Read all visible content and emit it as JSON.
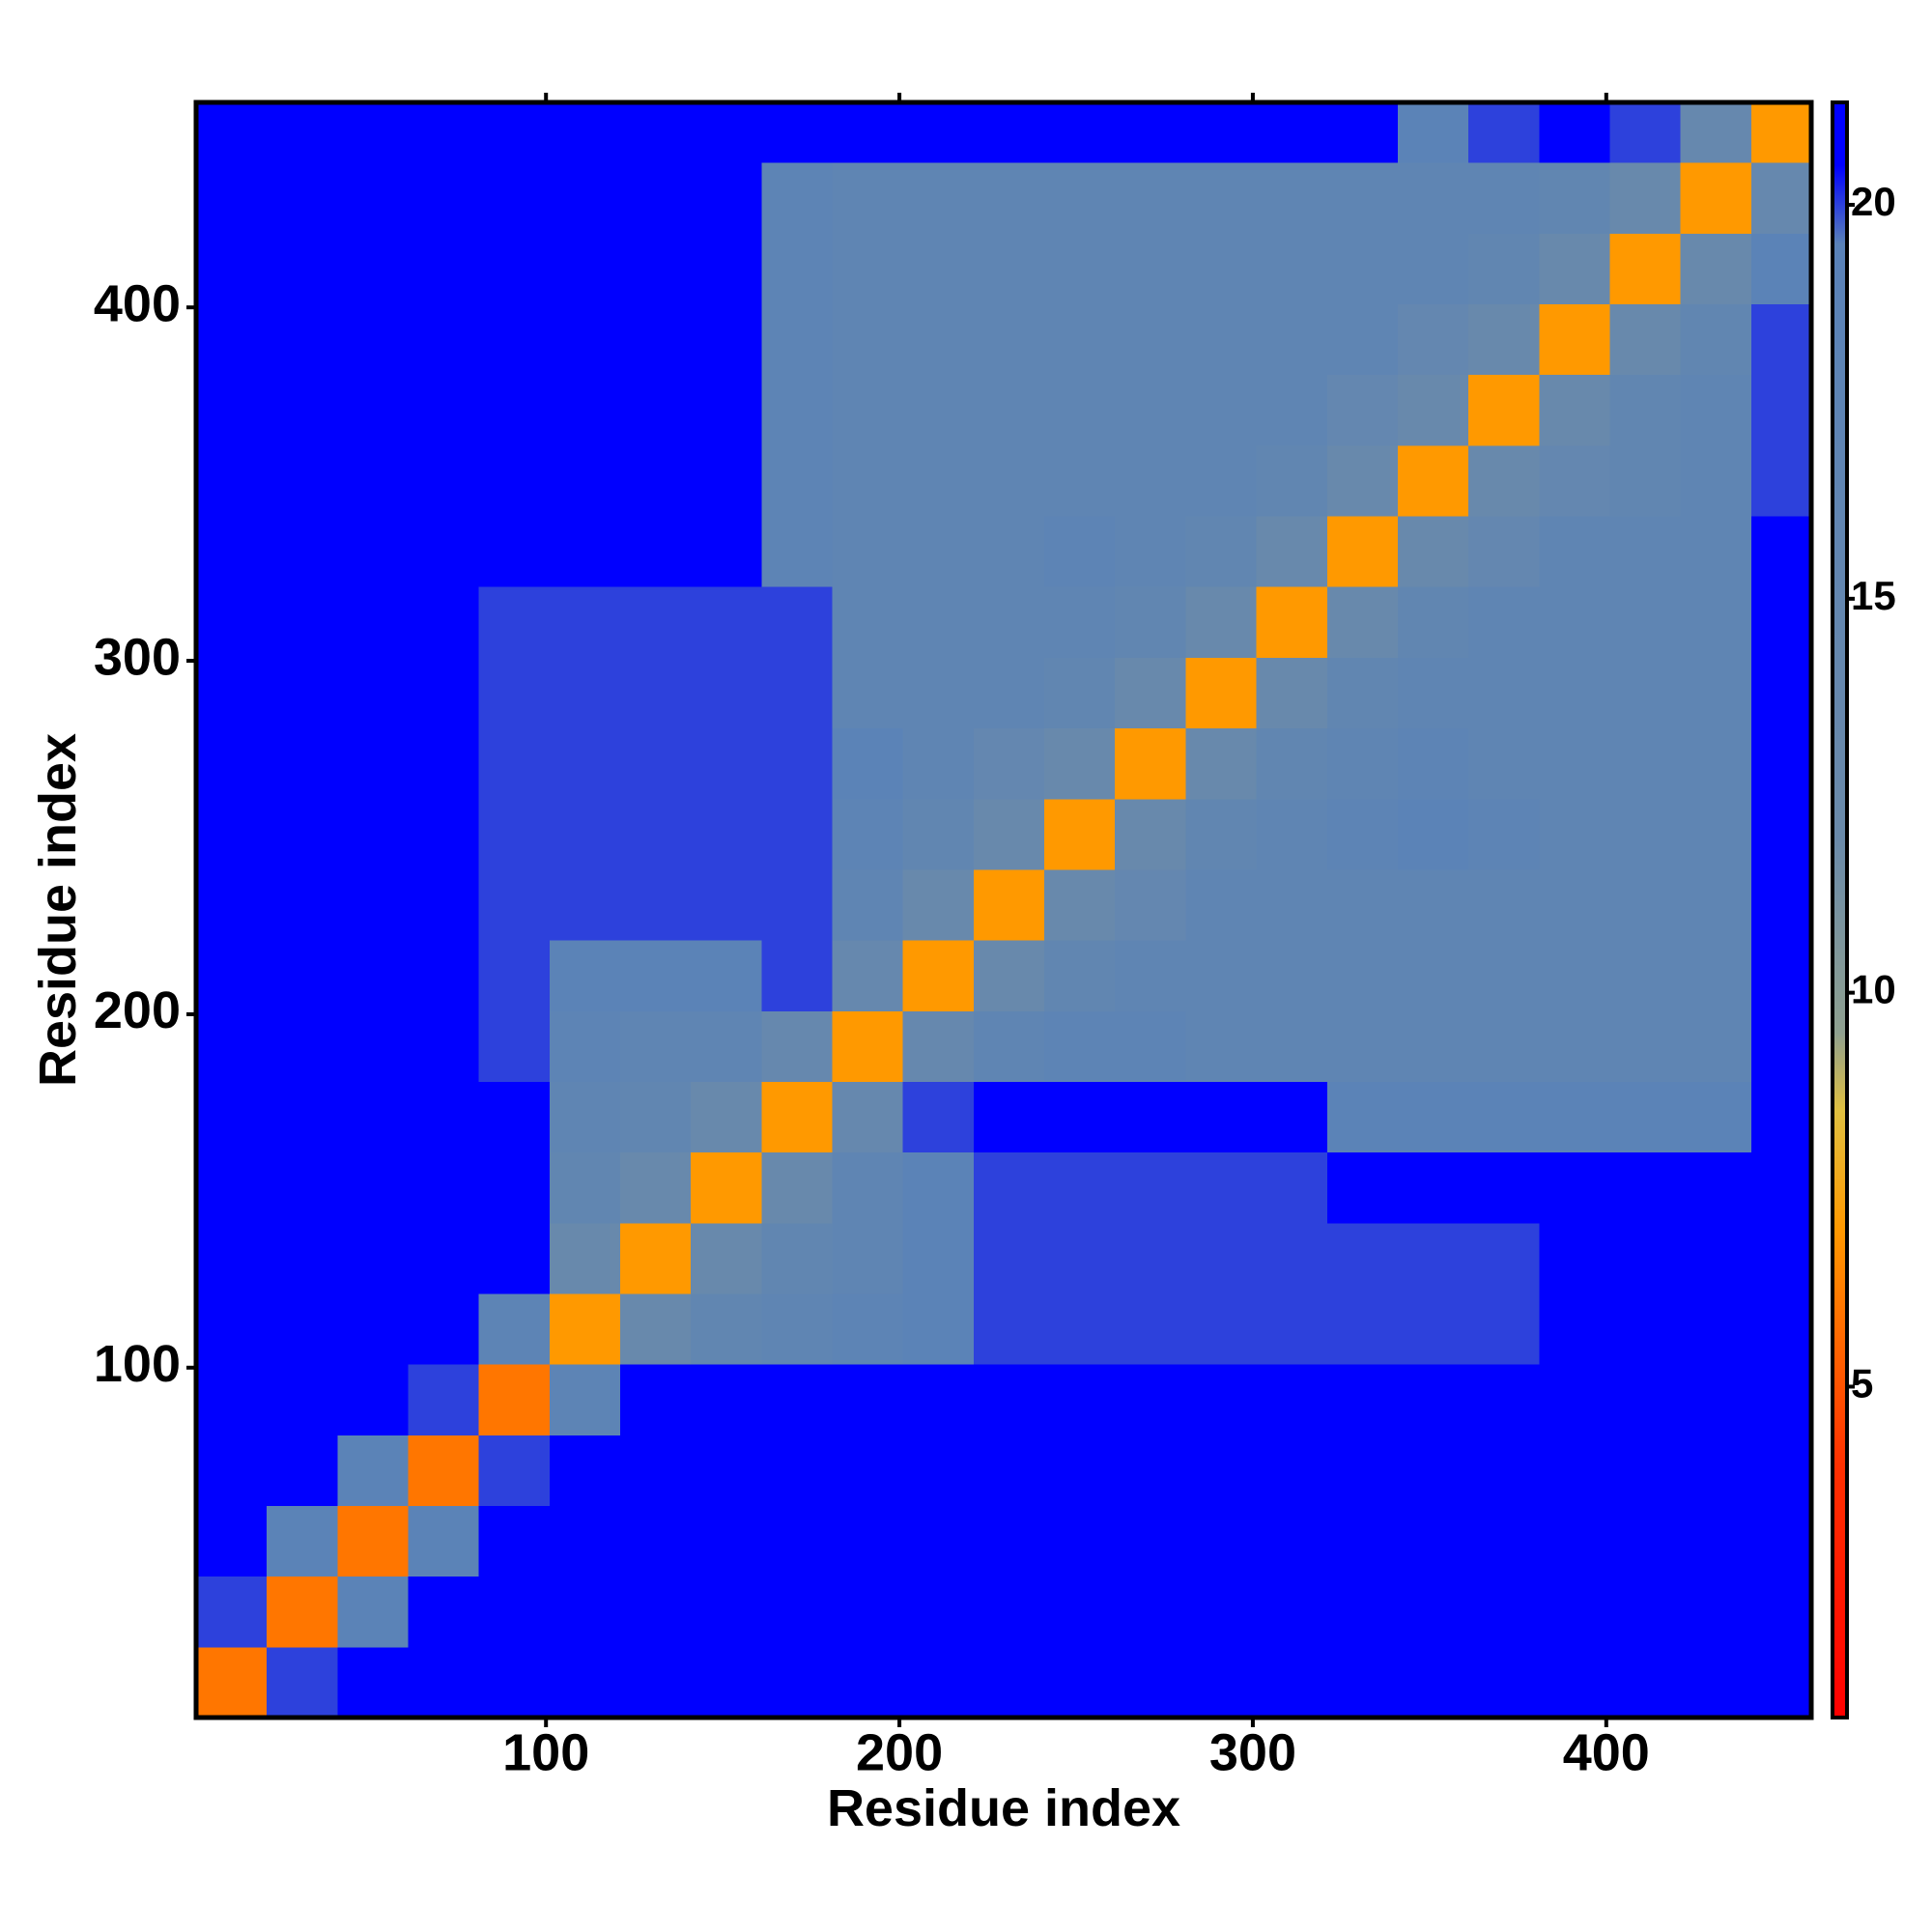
{
  "chart_data": {
    "type": "heatmap",
    "xlabel": "Residue index",
    "ylabel": "Residue index",
    "xlim": [
      1,
      458
    ],
    "ylim": [
      1,
      458
    ],
    "xticks": [
      100,
      200,
      300,
      400
    ],
    "yticks": [
      100,
      200,
      300,
      400
    ],
    "bins": [
      1,
      21,
      41,
      61,
      81,
      101,
      121,
      141,
      161,
      181,
      201,
      221,
      241,
      261,
      281,
      301,
      321,
      341,
      361,
      381,
      401,
      421,
      441,
      458
    ],
    "values": [
      [
        6,
        20,
        21,
        21,
        21,
        21,
        21,
        21,
        21,
        21,
        21,
        21,
        21,
        21,
        21,
        21,
        21,
        21,
        21,
        21,
        21,
        21,
        21
      ],
      [
        20,
        6,
        19,
        21,
        21,
        21,
        21,
        21,
        21,
        21,
        21,
        21,
        21,
        21,
        21,
        21,
        21,
        21,
        21,
        21,
        21,
        21,
        21
      ],
      [
        21,
        19,
        6,
        19,
        21,
        21,
        21,
        21,
        21,
        21,
        21,
        21,
        21,
        21,
        21,
        21,
        21,
        21,
        21,
        21,
        21,
        21,
        21
      ],
      [
        21,
        21,
        19,
        6,
        20,
        21,
        21,
        21,
        21,
        21,
        21,
        21,
        21,
        21,
        21,
        21,
        21,
        21,
        21,
        21,
        21,
        21,
        21
      ],
      [
        21,
        21,
        21,
        20,
        6,
        18,
        21,
        21,
        21,
        21,
        21,
        21,
        21,
        21,
        21,
        21,
        21,
        21,
        21,
        21,
        21,
        21,
        21
      ],
      [
        21,
        21,
        21,
        21,
        18,
        7,
        13,
        16,
        17,
        18,
        19,
        20,
        20,
        20,
        20,
        20,
        20,
        20,
        20,
        21,
        21,
        21,
        21
      ],
      [
        21,
        21,
        21,
        21,
        21,
        13,
        7,
        13,
        16,
        17,
        19,
        20,
        20,
        20,
        20,
        20,
        20,
        20,
        20,
        21,
        21,
        21,
        21
      ],
      [
        21,
        21,
        21,
        21,
        21,
        16,
        13,
        7,
        13,
        17,
        19,
        20,
        20,
        20,
        20,
        20,
        21,
        21,
        21,
        21,
        21,
        21,
        21
      ],
      [
        21,
        21,
        21,
        21,
        21,
        17,
        16,
        13,
        7,
        14,
        20,
        21,
        21,
        21,
        21,
        21,
        19,
        19,
        19,
        19,
        19,
        19,
        21
      ],
      [
        21,
        21,
        21,
        21,
        20,
        18,
        17,
        17,
        14,
        7,
        14,
        17,
        18,
        18,
        17,
        17,
        17,
        17,
        17,
        17,
        17,
        17,
        21
      ],
      [
        21,
        21,
        21,
        21,
        20,
        19,
        19,
        19,
        20,
        14,
        7,
        13,
        16,
        17,
        17,
        17,
        17,
        17,
        17,
        17,
        17,
        17,
        21
      ],
      [
        21,
        21,
        21,
        21,
        20,
        20,
        20,
        20,
        20,
        17,
        13,
        7,
        13,
        15,
        17,
        17,
        17,
        17,
        17,
        17,
        17,
        17,
        21
      ],
      [
        21,
        21,
        21,
        21,
        20,
        20,
        20,
        20,
        20,
        18,
        16,
        13,
        7,
        13,
        16,
        17,
        18,
        19,
        18,
        17,
        17,
        17,
        21
      ],
      [
        21,
        21,
        21,
        21,
        20,
        20,
        20,
        20,
        20,
        19,
        17,
        15,
        13,
        7,
        13,
        16,
        17,
        18,
        17,
        17,
        17,
        17,
        21
      ],
      [
        21,
        21,
        21,
        21,
        20,
        20,
        20,
        20,
        20,
        17,
        17,
        17,
        16,
        13,
        7,
        13,
        16,
        17,
        17,
        17,
        17,
        17,
        21
      ],
      [
        21,
        21,
        21,
        21,
        20,
        20,
        20,
        20,
        20,
        17,
        17,
        17,
        17,
        16,
        13,
        7,
        13,
        16,
        17,
        17,
        17,
        17,
        21
      ],
      [
        21,
        21,
        21,
        21,
        21,
        21,
        21,
        21,
        18,
        17,
        17,
        17,
        18,
        17,
        16,
        13,
        7,
        13,
        15,
        17,
        17,
        17,
        21
      ],
      [
        21,
        21,
        21,
        21,
        21,
        21,
        21,
        21,
        18,
        17,
        17,
        17,
        17,
        17,
        17,
        16,
        13,
        7,
        13,
        15,
        16,
        17,
        20
      ],
      [
        21,
        21,
        21,
        21,
        21,
        21,
        21,
        21,
        18,
        17,
        17,
        17,
        17,
        17,
        17,
        17,
        15,
        13,
        7,
        13,
        16,
        17,
        20
      ],
      [
        21,
        21,
        21,
        21,
        21,
        21,
        21,
        21,
        18,
        17,
        17,
        17,
        17,
        17,
        17,
        17,
        17,
        15,
        13,
        7,
        13,
        16,
        20
      ],
      [
        21,
        21,
        21,
        21,
        21,
        21,
        21,
        21,
        18,
        17,
        17,
        17,
        17,
        17,
        17,
        17,
        17,
        17,
        16,
        13,
        7,
        13,
        19
      ],
      [
        21,
        21,
        21,
        21,
        21,
        21,
        21,
        21,
        18,
        17,
        17,
        17,
        17,
        17,
        17,
        17,
        17,
        17,
        17,
        16,
        13,
        7,
        14
      ],
      [
        21,
        21,
        21,
        21,
        21,
        21,
        21,
        21,
        21,
        21,
        21,
        21,
        21,
        21,
        21,
        21,
        21,
        19,
        20,
        21,
        20,
        14,
        7
      ]
    ],
    "clim": [
      0.8,
      21.3
    ],
    "cticks": [
      5,
      10,
      15,
      20
    ],
    "colorscale": [
      {
        "value": 0.8,
        "color": "#ff0000"
      },
      {
        "value": 4,
        "color": "#ff3000"
      },
      {
        "value": 7,
        "color": "#ff9900"
      },
      {
        "value": 8.5,
        "color": "#e0c040"
      },
      {
        "value": 9.5,
        "color": "#8fa090"
      },
      {
        "value": 12,
        "color": "#6a8aaa"
      },
      {
        "value": 19.5,
        "color": "#5a82b8"
      },
      {
        "value": 20.5,
        "color": "#0000ff"
      },
      {
        "value": 21.3,
        "color": "#0000ff"
      }
    ]
  }
}
